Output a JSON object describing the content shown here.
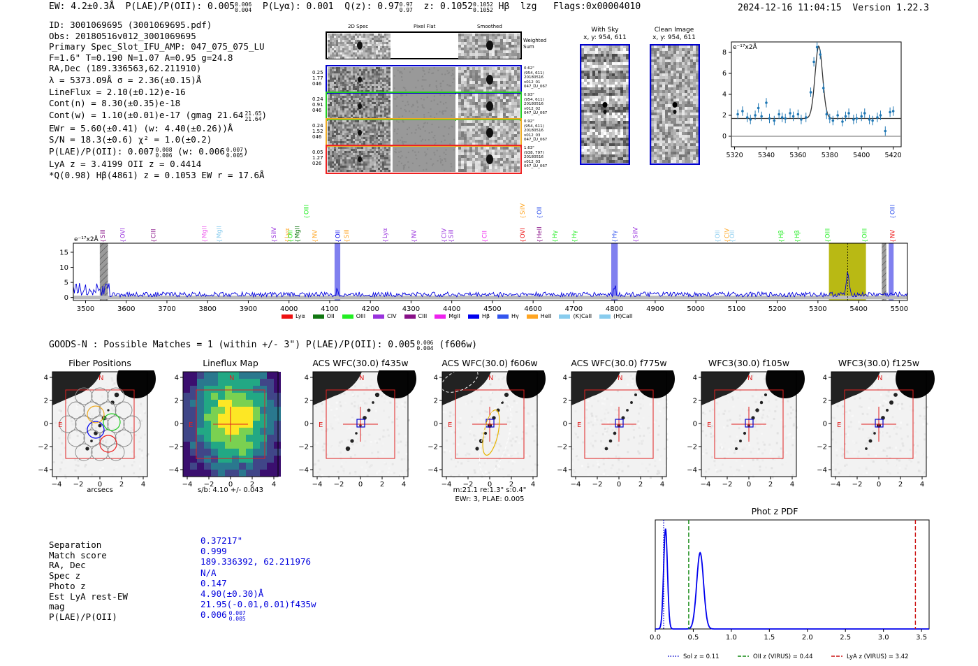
{
  "header": {
    "ew": "EW: 4.2±0.3Å",
    "plae": "P(LAE)/P(OII): 0.005",
    "plae_hi": "0.006",
    "plae_lo": "0.004",
    "plya": "P(Lyα): 0.001",
    "qz": "Q(z): 0.97",
    "qz_hi": "0.97",
    "qz_lo": "0.97",
    "z": "z: 0.1052",
    "z_hi": "0.1052",
    "z_lo": "0.1052",
    "hb": "Hβ",
    "lzg": "lzg",
    "flags": "Flags:0x00004010",
    "datetime": "2024-12-16 11:04:15",
    "version": "Version 1.22.3"
  },
  "info": [
    "ID: 3001069695 (3001069695.pdf)",
    "Obs: 20180516v012_3001069695",
    "Primary Spec_Slot_IFU_AMP: 047_075_075_LU",
    "F=1.6\"  T=0.190  N=1.07  A=0.95  g=24.8",
    "RA,Dec (189.336563,62.211910)",
    "λ = 5373.09Å  σ = 2.36(±0.15)Å",
    "LineFlux = 2.10(±0.12)e-16",
    "Cont(n) = 8.30(±0.35)e-18",
    "Cont(w) = 1.10(±0.01)e-17 (gmag 21.64",
    "EWr = 5.60(±0.41) (w: 4.40(±0.26))Å",
    "S/N = 18.3(±0.6)  χ² = 1.0(±0.2)",
    "P(LAE)/P(OII): 0.007",
    "LyA z = 3.4199  OII z = 0.4414",
    "*Q(0.98) Hβ(4861) z = 0.1053  EW r = 17.6Å"
  ],
  "info_extra": {
    "gmag_hi": "21.65",
    "gmag_lo": "21.64",
    "plae_hi": "0.008",
    "plae_lo": "0.006",
    "plae_w": "(w: 0.006",
    "plae_w_hi": "0.007",
    "plae_w_lo": "0.005",
    "plae_w_close": ")"
  },
  "cutouts": {
    "col_2d": "2D Spec",
    "col_flat": "Pixel Flat",
    "col_smooth": "Smoothed",
    "weighted": "Weighted Sum",
    "rows": [
      {
        "l1": "0.25",
        "l2": "1.77",
        "l3": "046",
        "r1": "0.62\"",
        "r2": "(954, 611)",
        "r3": "20180516",
        "r4": "v012_01",
        "r5": "047_LU_067",
        "color": "#0000cc"
      },
      {
        "l1": "0.24",
        "l2": "0.91",
        "l3": "046",
        "r1": "0.93\"",
        "r2": "(954, 611)",
        "r3": "20180516",
        "r4": "v012_02",
        "r5": "047_LU_067",
        "color": "#22cc22"
      },
      {
        "l1": "0.24",
        "l2": "1.52",
        "l3": "046",
        "r1": "0.92\"",
        "r2": "(954, 611)",
        "r3": "20180516",
        "r4": "v012_03",
        "r5": "047_LU_067",
        "color": "#eeaa22"
      },
      {
        "l1": "0.05",
        "l2": "1.27",
        "l3": "026",
        "r1": "1.63\"",
        "r2": "(938, 797)",
        "r3": "20180516",
        "r4": "v012_03",
        "r5": "047_LU_067",
        "color": "#ee2222"
      }
    ]
  },
  "withsky": {
    "title": "With Sky",
    "coords": "x, y: 954, 611"
  },
  "cleanimg": {
    "title": "Clean Image",
    "coords": "x, y: 954, 611"
  },
  "zoom_unit": "e⁻¹⁷x2Å",
  "spec_unit": "e⁻¹⁷x2Å",
  "legend": [
    {
      "name": "Lyα",
      "color": "#ee1111"
    },
    {
      "name": "OII",
      "color": "#117711"
    },
    {
      "name": "OIII",
      "color": "#22ee22"
    },
    {
      "name": "CIV",
      "color": "#9933dd"
    },
    {
      "name": "CIII",
      "color": "#881188"
    },
    {
      "name": "MgII",
      "color": "#ee22ee"
    },
    {
      "name": "Hβ",
      "color": "#0000ee"
    },
    {
      "name": "Hγ",
      "color": "#3355ee"
    },
    {
      "name": "HeII",
      "color": "#ffa522"
    },
    {
      "name": "(K)CaII",
      "color": "#88ccee"
    },
    {
      "name": "(H)CaII",
      "color": "#88ccee"
    }
  ],
  "lines": [
    {
      "n": "SiII",
      "w": 3542,
      "c": "#881188",
      "t": 0
    },
    {
      "n": "OVI",
      "w": 3591,
      "c": "#9933dd",
      "t": 0
    },
    {
      "n": "CIII",
      "w": 3667,
      "c": "#881188",
      "t": 0
    },
    {
      "n": "MgII",
      "w": 3792,
      "c": "#ee66ee",
      "t": 0
    },
    {
      "n": "MgII",
      "w": 3828,
      "c": "#88ccee",
      "t": 0
    },
    {
      "n": "SiIV",
      "w": 3963,
      "c": "#9933dd",
      "t": 0
    },
    {
      "n": "Lyα",
      "w": 3995,
      "c": "#ffa522",
      "t": 0
    },
    {
      "n": "OII",
      "w": 4003,
      "c": "#22ee22",
      "t": 0
    },
    {
      "n": "MgII",
      "w": 4020,
      "c": "#117711",
      "t": 0
    },
    {
      "n": "NV",
      "w": 4063,
      "c": "#ffa522",
      "t": 0
    },
    {
      "n": "OIII",
      "w": 4043,
      "c": "#22ee22",
      "t": 1
    },
    {
      "n": "OII",
      "w": 4120,
      "c": "#0000ee",
      "t": 0
    },
    {
      "n": "SiII",
      "w": 4141,
      "c": "#ffa522",
      "t": 0
    },
    {
      "n": "Lyα",
      "w": 4236,
      "c": "#9933dd",
      "t": 0
    },
    {
      "n": "NV",
      "w": 4307,
      "c": "#9933dd",
      "t": 0
    },
    {
      "n": "CIV",
      "w": 4381,
      "c": "#9933dd",
      "t": 0
    },
    {
      "n": "SiII",
      "w": 4398,
      "c": "#9933dd",
      "t": 0
    },
    {
      "n": "CII",
      "w": 4480,
      "c": "#ee22ee",
      "t": 0
    },
    {
      "n": "SiIV",
      "w": 4574,
      "c": "#ffa522",
      "t": 1
    },
    {
      "n": "OVI",
      "w": 4574,
      "c": "#ee1111",
      "t": 0
    },
    {
      "n": "OII",
      "w": 4615,
      "c": "#3355ee",
      "t": 1
    },
    {
      "n": "HeII",
      "w": 4615,
      "c": "#881188",
      "t": 0
    },
    {
      "n": "Hγ",
      "w": 4653,
      "c": "#22ee22",
      "t": 0
    },
    {
      "n": "Hγ",
      "w": 4701,
      "c": "#22ee22",
      "t": 0
    },
    {
      "n": "Hγ",
      "w": 4800,
      "c": "#3355ee",
      "t": 0
    },
    {
      "n": "SiIV",
      "w": 4851,
      "c": "#9933dd",
      "t": 0
    },
    {
      "n": "OII",
      "w": 5053,
      "c": "#88ccee",
      "t": 0
    },
    {
      "n": "CIV",
      "w": 5076,
      "c": "#ffa522",
      "t": 0
    },
    {
      "n": "OII",
      "w": 5089,
      "c": "#88ccee",
      "t": 0
    },
    {
      "n": "Hβ",
      "w": 5209,
      "c": "#22ee22",
      "t": 0
    },
    {
      "n": "Hβ",
      "w": 5249,
      "c": "#22ee22",
      "t": 0
    },
    {
      "n": "OIII",
      "w": 5323,
      "c": "#22ee22",
      "t": 0
    },
    {
      "n": "OIII",
      "w": 5414,
      "c": "#22ee22",
      "t": 0
    },
    {
      "n": "OIII",
      "w": 5483,
      "c": "#3355ee",
      "t": 1
    },
    {
      "n": "NV",
      "w": 5483,
      "c": "#ee1111",
      "t": 0
    }
  ],
  "matches": {
    "title": "GOODS-N : Possible Matches = 1 (within +/- 3\")  P(LAE)/P(OII): 0.005",
    "plae_hi": "0.006",
    "plae_lo": "0.004",
    "filter": "(f606w)"
  },
  "stamps": [
    {
      "title": "Fiber Positions",
      "sub": "arcsecs",
      "sub2": ""
    },
    {
      "title": "Lineflux Map",
      "sub": "s/b: 4.10 +/- 0.043",
      "sub2": ""
    },
    {
      "title": "ACS WFC(30.0) f435w",
      "sub": "",
      "sub2": ""
    },
    {
      "title": "ACS WFC(30.0) f606w",
      "sub": "m:21.1  re:1.3\"  s:0.4\"",
      "sub2": "EWr: 3, PLAE: 0.005"
    },
    {
      "title": "ACS WFC(30.0) f775w",
      "sub": "",
      "sub2": ""
    },
    {
      "title": "WFC3(30.0) f105w",
      "sub": "",
      "sub2": ""
    },
    {
      "title": "WFC3(30.0) f125w",
      "sub": "",
      "sub2": ""
    }
  ],
  "stamp_ticks_x": [
    "−4",
    "−2",
    "0",
    "2",
    "4"
  ],
  "stamp_ticks_y": [
    "4",
    "2",
    "0",
    "−2",
    "−4"
  ],
  "compass": {
    "n": "N",
    "e": "E"
  },
  "match_table": {
    "labels": [
      "Separation",
      "Match score",
      "RA, Dec",
      "Spec z",
      "Photo z",
      "Est LyA rest-EW",
      "mag",
      "P(LAE)/P(OII)"
    ],
    "values": [
      "0.37217\"",
      "0.999",
      "189.336392, 62.211976",
      "N/A",
      "0.147",
      "4.90(±0.30)Å",
      "21.95(-0.01,0.01)f435w",
      "0.006"
    ],
    "plae_hi": "0.007",
    "plae_lo": "0.005"
  },
  "photz": {
    "title": "Phot z PDF",
    "legend": [
      "Sol z = 0.11",
      "OII z (VIRUS) = 0.44",
      "LyA z (VIRUS) = 3.42"
    ]
  },
  "chart_data": [
    {
      "type": "line",
      "title": "Full spectrum",
      "xlabel": "wavelength (Å)",
      "ylabel": "e⁻¹⁷x2Å",
      "xlim": [
        3470,
        5520
      ],
      "ylim": [
        -1,
        18
      ],
      "x_ticks": [
        3500,
        3600,
        3700,
        3800,
        3900,
        4000,
        4100,
        4200,
        4300,
        4400,
        4500,
        4600,
        4700,
        4800,
        4900,
        5000,
        5100,
        5200,
        5300,
        5400,
        5500
      ],
      "y_ticks": [
        0,
        5,
        10,
        15
      ],
      "highlights": [
        {
          "type": "hatched",
          "x": [
            3535,
            3555
          ]
        },
        {
          "type": "band",
          "x": [
            4112,
            4126
          ]
        },
        {
          "type": "band",
          "x": [
            4792,
            4808
          ]
        },
        {
          "type": "emission",
          "x": [
            5327,
            5418
          ]
        },
        {
          "type": "hatched",
          "x": [
            5457,
            5468
          ]
        },
        {
          "type": "band",
          "x": [
            5474,
            5486
          ]
        }
      ],
      "peak": {
        "x": 5373,
        "y": 7.5
      }
    },
    {
      "type": "scatter",
      "title": "Line fit",
      "xlim": [
        5318,
        5425
      ],
      "ylim": [
        -1,
        9
      ],
      "x_ticks": [
        5320,
        5340,
        5360,
        5380,
        5400,
        5420
      ],
      "y_ticks": [
        0,
        2,
        4,
        6,
        8
      ],
      "x": [
        5322,
        5325,
        5328,
        5330,
        5333,
        5335,
        5337,
        5340,
        5342,
        5345,
        5348,
        5350,
        5352,
        5355,
        5357,
        5360,
        5362,
        5365,
        5368,
        5370,
        5372,
        5374,
        5376,
        5378,
        5380,
        5382,
        5385,
        5388,
        5390,
        5392,
        5395,
        5397,
        5400,
        5402,
        5405,
        5407,
        5410,
        5412,
        5415,
        5418,
        5420
      ],
      "y": [
        2.1,
        2.4,
        1.8,
        1.6,
        2.0,
        2.7,
        1.9,
        3.2,
        1.7,
        1.5,
        2.1,
        1.8,
        1.7,
        2.2,
        1.9,
        2.1,
        1.6,
        1.8,
        4.2,
        7.1,
        8.5,
        7.8,
        4.6,
        2.1,
        1.7,
        1.5,
        2.0,
        1.4,
        1.9,
        2.2,
        1.6,
        1.7,
        1.9,
        2.2,
        1.6,
        1.5,
        1.8,
        2.0,
        0.5,
        2.3,
        2.4
      ],
      "fit": {
        "center": 5373.09,
        "sigma": 2.36,
        "continuum": 1.7,
        "amp": 6.9
      }
    },
    {
      "type": "line",
      "title": "Phot z PDF",
      "xlim": [
        0,
        3.6
      ],
      "ylim": [
        0,
        1
      ],
      "x_ticks": [
        0.0,
        0.5,
        1.0,
        1.5,
        2.0,
        2.5,
        3.0,
        3.5
      ],
      "peaks": [
        {
          "z": 0.135,
          "h": 0.92,
          "w": 0.025
        },
        {
          "z": 0.59,
          "h": 0.7,
          "w": 0.045
        }
      ],
      "vlines": [
        {
          "z": 0.11,
          "label": "Sol z = 0.11",
          "color": "#0000cc",
          "style": "dotted"
        },
        {
          "z": 0.44,
          "label": "OII z (VIRUS) = 0.44",
          "color": "#118811",
          "style": "dashed"
        },
        {
          "z": 3.42,
          "label": "LyA z (VIRUS) = 3.42",
          "color": "#cc1111",
          "style": "dashed"
        }
      ]
    }
  ]
}
